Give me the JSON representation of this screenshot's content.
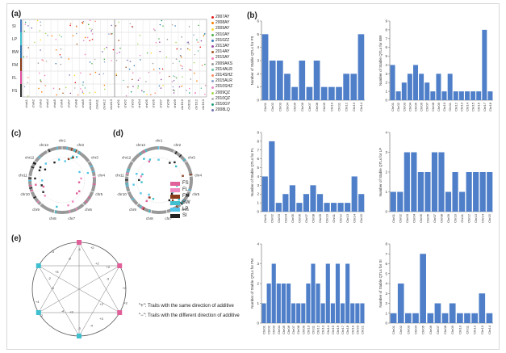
{
  "panel_labels": {
    "a": "(a)",
    "b": "(b)",
    "c": "(c)",
    "d": "(d)",
    "e": "(e)"
  },
  "panel_a": {
    "traits": [
      "SI",
      "LP",
      "BW",
      "FM",
      "FL",
      "FS"
    ],
    "trait_colors": [
      "#4a7fc1",
      "#3fbfcf",
      "#2f6fa8",
      "#8a3b1a",
      "#e04fa0",
      "#333333"
    ],
    "chromosomes": [
      "chrA1",
      "chrA2",
      "chrA3",
      "chrA4",
      "chrA5",
      "chrA6",
      "chrA7",
      "chrA8",
      "chrA9",
      "chrA10",
      "chrA11",
      "chrA12",
      "chrA13",
      "chrD1",
      "chrD2",
      "chrD3",
      "chrD4",
      "chrD5",
      "chrD6",
      "chrD7",
      "chrD8",
      "chrD9",
      "chrD10",
      "chrD11",
      "chrD12",
      "chrD13"
    ],
    "environments": [
      "2007AY",
      "2008AY",
      "2009AY",
      "2010AY",
      "2010ZZ",
      "2013AY",
      "2014AY",
      "2015AY",
      "2009AKS",
      "2014ALR",
      "2014SHZ",
      "2015ALR",
      "2010SHZ",
      "2009QZ",
      "2010QZ",
      "2010GY",
      "2008LQ"
    ],
    "env_colors": [
      "#e41a1c",
      "#ff7f00",
      "#ffd92f",
      "#4daf4a",
      "#377eb8",
      "#984ea3",
      "#a65628",
      "#f781bf",
      "#999999",
      "#66c2a5",
      "#fc8d62",
      "#8da0cb",
      "#e78ac3",
      "#a6d854",
      "#b3b3b3",
      "#1b9e77",
      "#7570b3"
    ]
  },
  "panel_c": {
    "legend": [
      {
        "label": "FS",
        "color": "#e0609a"
      },
      {
        "label": "FL",
        "color": "#f08ac0"
      },
      {
        "label": "FM",
        "color": "#8a3b1a"
      },
      {
        "label": "BW",
        "color": "#3fbfcf"
      },
      {
        "label": "LP",
        "color": "#55c4e8"
      },
      {
        "label": "SI",
        "color": "#222222"
      }
    ],
    "chrom_labels": [
      "chr1",
      "chr2",
      "chr3",
      "chr4",
      "chr5",
      "chr6",
      "chr7",
      "chr8",
      "chr9",
      "chr10",
      "chr11",
      "chr12",
      "chr13"
    ]
  },
  "panel_e": {
    "notes": [
      "\"+\": Traits with the same direction of additive",
      "\"−\": Traits with the different direction of additive"
    ],
    "signs": [
      "+2",
      "+3",
      "+2",
      "+3",
      "-4",
      "-3",
      "+3",
      "-4",
      "-2",
      "+4",
      "-3",
      "-2",
      "+3",
      "-3",
      "-2",
      "-4",
      "+2",
      "+2",
      "+2",
      "-3"
    ]
  },
  "chart_data": [
    {
      "type": "bar",
      "trait": "FS",
      "ylabel": "Number of Stable QTLs for FS",
      "ylim": [
        0,
        6
      ],
      "categories": [
        "Chr01",
        "Chr02",
        "Chr03",
        "Chr04",
        "Chr05",
        "Chr06",
        "Chr07",
        "Chr08",
        "Chr09",
        "Chr10",
        "Chr11",
        "Chr12",
        "Chr13",
        "Chr14"
      ],
      "values": [
        5,
        3,
        3,
        2,
        1,
        3,
        1,
        3,
        1,
        1,
        1,
        2,
        2,
        5
      ]
    },
    {
      "type": "bar",
      "trait": "BW",
      "ylabel": "Number of Stable QTLs for BW",
      "ylim": [
        0,
        9
      ],
      "categories": [
        "Chr01",
        "Chr02",
        "Chr03",
        "Chr04",
        "Chr05",
        "Chr06",
        "Chr07",
        "Chr08",
        "Chr09",
        "Chr10",
        "Chr11",
        "Chr12",
        "Chr13",
        "Chr14",
        "Chr15",
        "Chr16",
        "Chr17",
        "Chr18"
      ],
      "values": [
        4,
        1,
        2,
        3,
        4,
        3,
        2,
        1,
        3,
        1,
        3,
        1,
        1,
        1,
        1,
        1,
        8,
        1
      ]
    },
    {
      "type": "bar",
      "trait": "FL",
      "ylabel": "Number of Stable QTLs for FL",
      "ylim": [
        0,
        9
      ],
      "categories": [
        "Chr01",
        "Chr02",
        "Chr03",
        "Chr04",
        "Chr05",
        "Chr06",
        "Chr07",
        "Chr08",
        "Chr09",
        "Chr10",
        "Chr11",
        "Chr12",
        "Chr13",
        "Chr14",
        "Chr15"
      ],
      "values": [
        4,
        8,
        1,
        2,
        3,
        1,
        2,
        3,
        2,
        1,
        1,
        1,
        1,
        4,
        2
      ]
    },
    {
      "type": "bar",
      "trait": "LP",
      "ylabel": "Number of Stable QTLs for LP",
      "ylim": [
        0,
        4
      ],
      "categories": [
        "Chr01",
        "Chr02",
        "Chr03",
        "Chr04",
        "Chr05",
        "Chr06",
        "Chr07",
        "Chr08",
        "Chr09",
        "Chr10",
        "Chr11",
        "Chr12",
        "Chr13",
        "Chr14",
        "Chr15"
      ],
      "values": [
        1,
        1,
        3,
        3,
        2,
        2,
        3,
        3,
        1,
        2,
        1,
        2,
        2,
        2,
        2
      ]
    },
    {
      "type": "bar",
      "trait": "FM",
      "ylabel": "Number of Stable QTLs for FM",
      "ylim": [
        0,
        4
      ],
      "categories": [
        "Chr01",
        "Chr02",
        "Chr03",
        "Chr04",
        "Chr05",
        "Chr06",
        "Chr07",
        "Chr08",
        "Chr09",
        "Chr10",
        "Chr11",
        "Chr12",
        "Chr13",
        "Chr14",
        "Chr15",
        "Chr16",
        "Chr17",
        "Chr18",
        "Chr19",
        "Chr20",
        "Chr21"
      ],
      "values": [
        1,
        2,
        3,
        2,
        2,
        2,
        1,
        1,
        1,
        2,
        3,
        2,
        1,
        3,
        1,
        3,
        1,
        3,
        1,
        1,
        1
      ]
    },
    {
      "type": "bar",
      "trait": "SI",
      "ylabel": "Number of Stable QTLs for SI",
      "ylim": [
        0,
        8
      ],
      "categories": [
        "Chr01",
        "Chr02",
        "Chr03",
        "Chr04",
        "Chr05",
        "Chr06",
        "Chr07",
        "Chr08",
        "Chr09",
        "Chr10",
        "Chr11",
        "Chr12",
        "Chr13",
        "Chr14"
      ],
      "values": [
        1,
        4,
        1,
        1,
        7,
        1,
        2,
        1,
        2,
        1,
        1,
        1,
        3,
        1
      ]
    }
  ]
}
